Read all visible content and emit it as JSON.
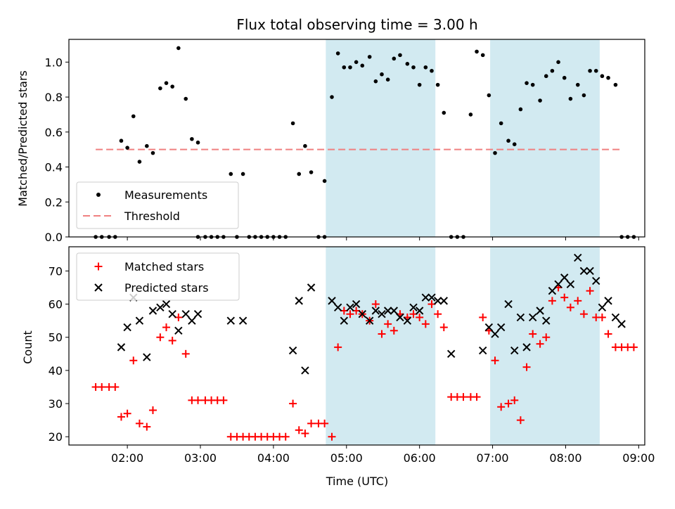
{
  "chart_data": [
    {
      "type": "scatter",
      "title": "Flux total observing time = 3.00 h",
      "xlabel": "",
      "ylabel": "Matched/Predicted stars",
      "xlim": [
        "01:12",
        "09:05"
      ],
      "ylim": [
        0,
        1.13
      ],
      "yticks": [
        "0.0",
        "0.2",
        "0.4",
        "0.6",
        "0.8",
        "1.0"
      ],
      "grid": false,
      "legend_position": "lower-left",
      "shaded_windows": [
        [
          "04:43",
          "06:13"
        ],
        [
          "06:58",
          "08:28"
        ]
      ],
      "shade_color": "#add8e6",
      "threshold": {
        "name": "Threshold",
        "y": 0.5,
        "x_range": [
          "01:34",
          "08:46"
        ],
        "color": "#f08080",
        "style": "dashed"
      },
      "series": [
        {
          "name": "Measurements",
          "marker": "dot",
          "color": "#000000",
          "points": [
            [
              "01:34",
              0
            ],
            [
              "01:39",
              0
            ],
            [
              "01:45",
              0
            ],
            [
              "01:50",
              0
            ],
            [
              "01:55",
              0.55
            ],
            [
              "02:00",
              0.51
            ],
            [
              "02:05",
              0.69
            ],
            [
              "02:10",
              0.43
            ],
            [
              "02:16",
              0.52
            ],
            [
              "02:21",
              0.48
            ],
            [
              "02:27",
              0.85
            ],
            [
              "02:32",
              0.88
            ],
            [
              "02:37",
              0.86
            ],
            [
              "02:42",
              1.08
            ],
            [
              "02:48",
              0.79
            ],
            [
              "02:53",
              0.56
            ],
            [
              "02:58",
              0.54
            ],
            [
              "02:58",
              0
            ],
            [
              "03:04",
              0
            ],
            [
              "03:09",
              0
            ],
            [
              "03:14",
              0
            ],
            [
              "03:19",
              0
            ],
            [
              "03:25",
              0.36
            ],
            [
              "03:30",
              0
            ],
            [
              "03:35",
              0.36
            ],
            [
              "03:40",
              0
            ],
            [
              "03:45",
              0
            ],
            [
              "03:50",
              0
            ],
            [
              "03:55",
              0
            ],
            [
              "04:00",
              0
            ],
            [
              "04:05",
              0
            ],
            [
              "04:10",
              0
            ],
            [
              "04:16",
              0.65
            ],
            [
              "04:21",
              0.36
            ],
            [
              "04:26",
              0.52
            ],
            [
              "04:31",
              0.37
            ],
            [
              "04:37",
              0
            ],
            [
              "04:42",
              0
            ],
            [
              "04:42",
              0.32
            ],
            [
              "04:48",
              0.8
            ],
            [
              "04:53",
              1.05
            ],
            [
              "04:58",
              0.97
            ],
            [
              "05:03",
              0.97
            ],
            [
              "05:08",
              1.0
            ],
            [
              "05:13",
              0.98
            ],
            [
              "05:19",
              1.03
            ],
            [
              "05:24",
              0.89
            ],
            [
              "05:29",
              0.93
            ],
            [
              "05:34",
              0.9
            ],
            [
              "05:39",
              1.02
            ],
            [
              "05:44",
              1.04
            ],
            [
              "05:50",
              0.99
            ],
            [
              "05:55",
              0.97
            ],
            [
              "06:00",
              0.87
            ],
            [
              "06:05",
              0.97
            ],
            [
              "06:10",
              0.95
            ],
            [
              "06:15",
              0.87
            ],
            [
              "06:20",
              0.71
            ],
            [
              "06:26",
              0
            ],
            [
              "06:31",
              0
            ],
            [
              "06:36",
              0
            ],
            [
              "06:42",
              0.7
            ],
            [
              "06:47",
              1.06
            ],
            [
              "06:52",
              1.04
            ],
            [
              "06:57",
              0.81
            ],
            [
              "07:02",
              0.48
            ],
            [
              "07:07",
              0.65
            ],
            [
              "07:13",
              0.55
            ],
            [
              "07:18",
              0.53
            ],
            [
              "07:23",
              0.73
            ],
            [
              "07:28",
              0.88
            ],
            [
              "07:33",
              0.87
            ],
            [
              "07:39",
              0.78
            ],
            [
              "07:44",
              0.92
            ],
            [
              "07:49",
              0.95
            ],
            [
              "07:54",
              1.0
            ],
            [
              "07:59",
              0.91
            ],
            [
              "08:04",
              0.79
            ],
            [
              "08:10",
              0.87
            ],
            [
              "08:15",
              0.81
            ],
            [
              "08:20",
              0.95
            ],
            [
              "08:25",
              0.95
            ],
            [
              "08:30",
              0.92
            ],
            [
              "08:35",
              0.91
            ],
            [
              "08:41",
              0.87
            ],
            [
              "08:46",
              0
            ],
            [
              "08:51",
              0
            ],
            [
              "08:56",
              0
            ]
          ]
        }
      ]
    },
    {
      "type": "scatter",
      "title": "",
      "xlabel": "Time (UTC)",
      "ylabel": "Count",
      "xlim": [
        "01:12",
        "09:05"
      ],
      "ylim": [
        17.5,
        77.3
      ],
      "xticks": [
        "02:00",
        "03:00",
        "04:00",
        "05:00",
        "06:00",
        "07:00",
        "08:00",
        "09:00"
      ],
      "yticks": [
        "20",
        "30",
        "40",
        "50",
        "60",
        "70"
      ],
      "grid": false,
      "legend_position": "upper-left",
      "shaded_windows": [
        [
          "04:43",
          "06:13"
        ],
        [
          "06:58",
          "08:28"
        ]
      ],
      "shade_color": "#add8e6",
      "series": [
        {
          "name": "Matched stars",
          "marker": "plus",
          "color": "#ff0000",
          "points": [
            [
              "01:34",
              35
            ],
            [
              "01:39",
              35
            ],
            [
              "01:45",
              35
            ],
            [
              "01:50",
              35
            ],
            [
              "01:55",
              26
            ],
            [
              "02:00",
              27
            ],
            [
              "02:05",
              43
            ],
            [
              "02:10",
              24
            ],
            [
              "02:16",
              23
            ],
            [
              "02:21",
              28
            ],
            [
              "02:27",
              50
            ],
            [
              "02:32",
              53
            ],
            [
              "02:37",
              49
            ],
            [
              "02:42",
              56
            ],
            [
              "02:48",
              45
            ],
            [
              "02:53",
              31
            ],
            [
              "02:58",
              31
            ],
            [
              "03:04",
              31
            ],
            [
              "03:09",
              31
            ],
            [
              "03:14",
              31
            ],
            [
              "03:19",
              31
            ],
            [
              "03:25",
              20
            ],
            [
              "03:30",
              20
            ],
            [
              "03:35",
              20
            ],
            [
              "03:40",
              20
            ],
            [
              "03:45",
              20
            ],
            [
              "03:50",
              20
            ],
            [
              "03:55",
              20
            ],
            [
              "04:00",
              20
            ],
            [
              "04:05",
              20
            ],
            [
              "04:10",
              20
            ],
            [
              "04:16",
              30
            ],
            [
              "04:21",
              22
            ],
            [
              "04:26",
              21
            ],
            [
              "04:31",
              24
            ],
            [
              "04:37",
              24
            ],
            [
              "04:42",
              24
            ],
            [
              "04:48",
              20
            ],
            [
              "04:53",
              47
            ],
            [
              "04:58",
              58
            ],
            [
              "05:03",
              57
            ],
            [
              "05:08",
              58
            ],
            [
              "05:13",
              57
            ],
            [
              "05:19",
              55
            ],
            [
              "05:24",
              60
            ],
            [
              "05:29",
              51
            ],
            [
              "05:34",
              54
            ],
            [
              "05:39",
              52
            ],
            [
              "05:44",
              57
            ],
            [
              "05:50",
              56
            ],
            [
              "05:55",
              57
            ],
            [
              "06:00",
              56
            ],
            [
              "06:05",
              54
            ],
            [
              "06:10",
              60
            ],
            [
              "06:15",
              57
            ],
            [
              "06:20",
              53
            ],
            [
              "06:26",
              32
            ],
            [
              "06:31",
              32
            ],
            [
              "06:36",
              32
            ],
            [
              "06:42",
              32
            ],
            [
              "06:47",
              32
            ],
            [
              "06:52",
              56
            ],
            [
              "06:57",
              52
            ],
            [
              "07:02",
              43
            ],
            [
              "07:07",
              29
            ],
            [
              "07:13",
              30
            ],
            [
              "07:18",
              31
            ],
            [
              "07:23",
              25
            ],
            [
              "07:28",
              41
            ],
            [
              "07:33",
              51
            ],
            [
              "07:39",
              48
            ],
            [
              "07:44",
              50
            ],
            [
              "07:49",
              61
            ],
            [
              "07:54",
              65
            ],
            [
              "07:59",
              62
            ],
            [
              "08:04",
              59
            ],
            [
              "08:10",
              61
            ],
            [
              "08:15",
              57
            ],
            [
              "08:20",
              64
            ],
            [
              "08:25",
              56
            ],
            [
              "08:30",
              56
            ],
            [
              "08:35",
              51
            ],
            [
              "08:41",
              47
            ],
            [
              "08:46",
              47
            ],
            [
              "08:51",
              47
            ],
            [
              "08:56",
              47
            ]
          ]
        },
        {
          "name": "Predicted stars",
          "marker": "x",
          "color": "#000000",
          "points": [
            [
              "01:55",
              47
            ],
            [
              "02:00",
              53
            ],
            [
              "02:05",
              62
            ],
            [
              "02:10",
              55
            ],
            [
              "02:16",
              44
            ],
            [
              "02:21",
              58
            ],
            [
              "02:27",
              59
            ],
            [
              "02:32",
              60
            ],
            [
              "02:37",
              57
            ],
            [
              "02:42",
              52
            ],
            [
              "02:48",
              57
            ],
            [
              "02:53",
              55
            ],
            [
              "02:58",
              57
            ],
            [
              "03:25",
              55
            ],
            [
              "03:35",
              55
            ],
            [
              "04:16",
              46
            ],
            [
              "04:21",
              61
            ],
            [
              "04:26",
              40
            ],
            [
              "04:31",
              65
            ],
            [
              "04:48",
              61
            ],
            [
              "04:53",
              59
            ],
            [
              "04:58",
              55
            ],
            [
              "05:03",
              59
            ],
            [
              "05:08",
              60
            ],
            [
              "05:13",
              57
            ],
            [
              "05:19",
              55
            ],
            [
              "05:24",
              58
            ],
            [
              "05:29",
              57
            ],
            [
              "05:34",
              58
            ],
            [
              "05:39",
              58
            ],
            [
              "05:44",
              56
            ],
            [
              "05:50",
              55
            ],
            [
              "05:55",
              59
            ],
            [
              "06:00",
              58
            ],
            [
              "06:05",
              62
            ],
            [
              "06:10",
              62
            ],
            [
              "06:15",
              61
            ],
            [
              "06:20",
              61
            ],
            [
              "06:26",
              45
            ],
            [
              "06:52",
              46
            ],
            [
              "06:57",
              53
            ],
            [
              "07:02",
              51
            ],
            [
              "07:07",
              53
            ],
            [
              "07:13",
              60
            ],
            [
              "07:18",
              46
            ],
            [
              "07:23",
              56
            ],
            [
              "07:28",
              47
            ],
            [
              "07:33",
              56
            ],
            [
              "07:39",
              58
            ],
            [
              "07:44",
              55
            ],
            [
              "07:49",
              64
            ],
            [
              "07:54",
              66
            ],
            [
              "07:59",
              68
            ],
            [
              "08:04",
              66
            ],
            [
              "08:10",
              74
            ],
            [
              "08:15",
              70
            ],
            [
              "08:20",
              70
            ],
            [
              "08:25",
              67
            ],
            [
              "08:30",
              59
            ],
            [
              "08:35",
              61
            ],
            [
              "08:41",
              56
            ],
            [
              "08:46",
              54
            ]
          ]
        }
      ]
    }
  ]
}
